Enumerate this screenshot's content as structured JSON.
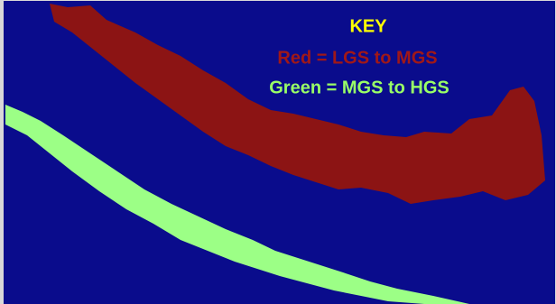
{
  "key": {
    "title": "KEY",
    "entries": [
      "Red = LGS to MGS",
      "Green = MGS to HGS"
    ]
  }
}
